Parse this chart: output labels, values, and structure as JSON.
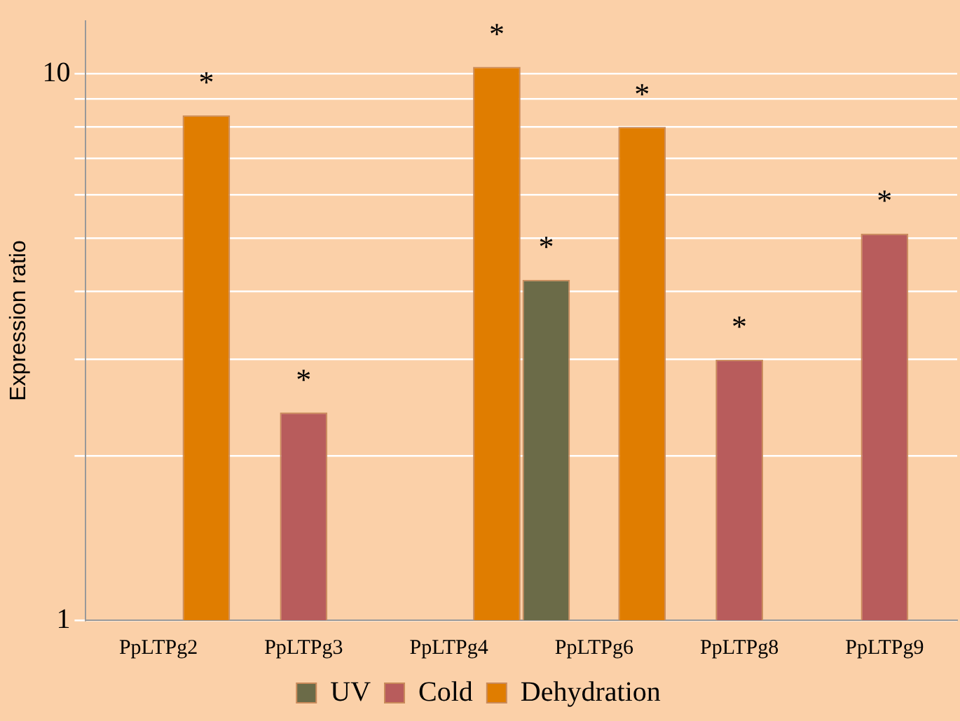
{
  "chart_data": {
    "type": "bar",
    "ylabel": "Expression ratio",
    "log": "y",
    "categories": [
      "PpLTPg2",
      "PpLTPg3",
      "PpLTPg4",
      "PpLTPg6",
      "PpLTPg8",
      "PpLTPg9"
    ],
    "series": [
      {
        "name": "UV",
        "color": "#6b6b48",
        "values": [
          null,
          null,
          null,
          4.2,
          null,
          null
        ],
        "value_labels": [
          null,
          null,
          null,
          "*",
          null,
          null
        ]
      },
      {
        "name": "Cold",
        "color": "#b85c5c",
        "values": [
          null,
          2.4,
          null,
          null,
          3.0,
          5.1
        ],
        "value_labels": [
          null,
          "*",
          null,
          null,
          "*",
          "*"
        ]
      },
      {
        "name": "Dehydration",
        "color": "#e07d00",
        "values": [
          8.4,
          null,
          10.3,
          8.0,
          null,
          null
        ],
        "value_labels": [
          "*",
          null,
          "*",
          "*",
          null,
          null
        ]
      }
    ],
    "ylim": [
      1,
      12.5
    ],
    "yticks": [
      1,
      {
        "value": 2,
        "label": null
      },
      {
        "value": 3,
        "label": null
      },
      {
        "value": 4,
        "label": null
      },
      {
        "value": 5,
        "label": null
      },
      {
        "value": 6,
        "label": null
      },
      {
        "value": 7,
        "label": null
      },
      {
        "value": 8,
        "label": null
      },
      {
        "value": 9,
        "label": null
      },
      10
    ],
    "grid": "y",
    "legend": "bottom"
  }
}
